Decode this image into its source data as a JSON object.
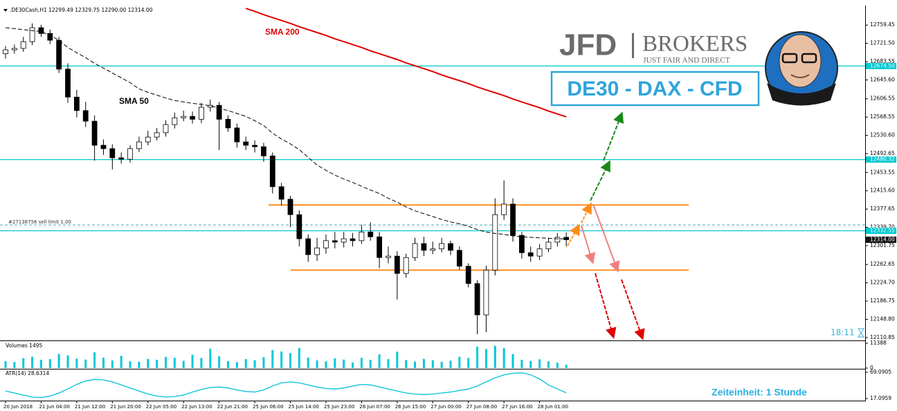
{
  "header": ".DE30Cash,H1  12299.49 12329.75 12290.00 12314.00",
  "logo": {
    "brand": "JFD",
    "name": "BROKERS",
    "tagline": "JUST FAIR AND DIRECT"
  },
  "instrument_badge": "DE30 - DAX - CFD",
  "countdown": "18:11",
  "timeframe_note": "Zeiteinheit: 1 Stunde",
  "chart_data": [
    {
      "type": "candlestick",
      "categories": [
        "20 Jun 2018",
        null,
        null,
        null,
        "21 Jun 04:00",
        null,
        null,
        null,
        "21 Jun 12:00",
        null,
        null,
        null,
        "21 Jun 20:00",
        null,
        null,
        null,
        "22 Jun 05:00",
        null,
        null,
        null,
        "22 Jun 13:00",
        null,
        null,
        null,
        "22 Jun 21:00",
        null,
        null,
        null,
        "25 Jun 06:00",
        null,
        null,
        null,
        "25 Jun 14:00",
        null,
        null,
        null,
        "25 Jun 23:00",
        null,
        null,
        null,
        "26 Jun 07:00",
        null,
        null,
        null,
        "26 Jun 15:00",
        null,
        null,
        null,
        "27 Jun 00:00",
        null,
        null,
        null,
        "27 Jun 08:00",
        null,
        null,
        null,
        "27 Jun 16:00",
        null,
        null,
        null,
        "28 Jun 01:00",
        null,
        null,
        null
      ],
      "open": [
        12700,
        12708,
        12711,
        12725,
        12754,
        12742,
        12728,
        12668,
        12610,
        12582,
        12560,
        12510,
        12503,
        12484,
        12481,
        12503,
        12517,
        12527,
        12536,
        12553,
        12567,
        12570,
        12564,
        12589,
        12593,
        12564,
        12546,
        12517,
        12510,
        12507,
        12488,
        12424,
        12398,
        12366,
        12316,
        12283,
        12297,
        12312,
        12309,
        12316,
        12312,
        12330,
        12320,
        12277,
        12280,
        12244,
        12277,
        12306,
        12292,
        12295,
        12306,
        12292,
        12259,
        12223,
        12158,
        12251,
        12366,
        12388,
        12323,
        12287,
        12280,
        12295,
        12309,
        12319
      ],
      "high": [
        12716,
        12719,
        12735,
        12763,
        12760,
        12750,
        12735,
        12680,
        12625,
        12600,
        12572,
        12522,
        12512,
        12495,
        12510,
        12528,
        12540,
        12546,
        12562,
        12578,
        12582,
        12580,
        12598,
        12605,
        12600,
        12572,
        12555,
        12528,
        12520,
        12515,
        12495,
        12432,
        12405,
        12375,
        12325,
        12318,
        12325,
        12330,
        12330,
        12328,
        12345,
        12350,
        12330,
        12300,
        12290,
        12285,
        12318,
        12320,
        12310,
        12318,
        12312,
        12300,
        12265,
        12230,
        12260,
        12400,
        12437,
        12400,
        12330,
        12300,
        12305,
        12318,
        12328,
        12329
      ],
      "low": [
        12690,
        12700,
        12704,
        12718,
        12735,
        12720,
        12660,
        12598,
        12568,
        12548,
        12478,
        12490,
        12460,
        12472,
        12474,
        12496,
        12510,
        12520,
        12528,
        12545,
        12560,
        12555,
        12556,
        12580,
        12500,
        12538,
        12505,
        12500,
        12495,
        12476,
        12410,
        12385,
        12340,
        12300,
        12268,
        12270,
        12285,
        12296,
        12298,
        12300,
        12305,
        12312,
        12255,
        12265,
        12190,
        12235,
        12270,
        12280,
        12284,
        12288,
        12282,
        12252,
        12215,
        12118,
        12122,
        12240,
        12355,
        12310,
        12275,
        12268,
        12272,
        12288,
        12300,
        12300
      ],
      "close": [
        12708,
        12711,
        12725,
        12754,
        12742,
        12728,
        12668,
        12610,
        12582,
        12560,
        12510,
        12503,
        12484,
        12481,
        12503,
        12517,
        12527,
        12536,
        12553,
        12567,
        12570,
        12564,
        12589,
        12593,
        12564,
        12546,
        12517,
        12510,
        12507,
        12488,
        12424,
        12398,
        12366,
        12316,
        12283,
        12297,
        12312,
        12309,
        12316,
        12312,
        12330,
        12320,
        12277,
        12280,
        12244,
        12277,
        12306,
        12292,
        12295,
        12306,
        12292,
        12259,
        12223,
        12158,
        12251,
        12366,
        12388,
        12323,
        12287,
        12280,
        12295,
        12309,
        12319,
        12314
      ],
      "up_color": "#ffffff",
      "down_color": "#000000",
      "series": [
        {
          "name": "SMA 50",
          "color": "#000000",
          "values": [
            12754,
            12752,
            12750,
            12748,
            12746,
            12738,
            12728,
            12713,
            12702,
            12692,
            12680,
            12670,
            12660,
            12650,
            12640,
            12627,
            12620,
            12614,
            12608,
            12603,
            12600,
            12597,
            12595,
            12592,
            12587,
            12582,
            12576,
            12570,
            12561,
            12551,
            12535,
            12523,
            12513,
            12501,
            12485,
            12469,
            12458,
            12448,
            12440,
            12433,
            12425,
            12417,
            12410,
            12400,
            12392,
            12382,
            12374,
            12368,
            12362,
            12356,
            12351,
            12347,
            12342,
            12335,
            12330,
            12327,
            12325,
            12322,
            12320,
            12319,
            12318,
            12317,
            12316,
            12316
          ]
        },
        {
          "name": "SMA 200",
          "color": "#e00000",
          "values": [
            null,
            null,
            null,
            null,
            null,
            null,
            null,
            null,
            null,
            null,
            null,
            null,
            null,
            null,
            null,
            null,
            null,
            null,
            null,
            null,
            null,
            null,
            null,
            null,
            null,
            null,
            null,
            12794,
            12788,
            12781,
            12775,
            12769,
            12763,
            12756,
            12750,
            12744,
            12738,
            12731,
            12725,
            12719,
            12713,
            12706,
            12700,
            12694,
            12688,
            12681,
            12675,
            12669,
            12663,
            12656,
            12650,
            12644,
            12638,
            12631,
            12625,
            12619,
            12613,
            12606,
            12600,
            12594,
            12588,
            12581,
            12575,
            12569
          ]
        }
      ],
      "levels": [
        {
          "value": 12674.5,
          "label": "12674.50",
          "color": "#00c8d0"
        },
        {
          "value": 12480.32,
          "label": "12480.32",
          "color": "#00c8d0"
        },
        {
          "value": 12332.55,
          "label": "12332.55",
          "color": "#00c8d0"
        }
      ],
      "order": {
        "value": 12344.7,
        "label": "#27138756 sell limit 1.00",
        "color": "#4aa6b8"
      },
      "zones": [
        12386,
        12251
      ],
      "zone_color": "#ff8c1a",
      "last_price": {
        "value": 12314,
        "label": "12314.00"
      },
      "ylim": [
        12105,
        12800
      ],
      "yticks": [
        12759.45,
        {
          "value": 12721.5,
          "label": "12721.50"
        },
        12683.55,
        {
          "value": 12645.6,
          "label": "12645.60"
        },
        12606.55,
        12568.55,
        {
          "value": 12530.6,
          "label": "12530.60"
        },
        12492.65,
        12453.55,
        {
          "value": 12415.6,
          "label": "12415.60"
        },
        12377.65,
        {
          "value": 12339.7,
          "label": "12339.70"
        },
        12301.75,
        12262.65,
        {
          "value": 12224.7,
          "label": "12224.70"
        },
        12186.75,
        {
          "value": 12148.8,
          "label": "12148.80"
        },
        12110.85
      ]
    },
    {
      "type": "bar",
      "title": "Volumes 1495",
      "color": "#00c8d8",
      "values": [
        3200,
        2800,
        4500,
        5200,
        3800,
        4100,
        6500,
        5800,
        4300,
        3900,
        7200,
        4800,
        3500,
        5600,
        3100,
        2900,
        4200,
        3800,
        5100,
        4700,
        3300,
        6100,
        4600,
        8900,
        5400,
        3200,
        2700,
        4100,
        3600,
        5000,
        8200,
        7600,
        6900,
        9200,
        4800,
        3500,
        3100,
        4400,
        3900,
        2600,
        4700,
        3800,
        6300,
        4100,
        7500,
        3700,
        3000,
        4200,
        3600,
        2900,
        3400,
        5200,
        4600,
        9800,
        8700,
        10200,
        9100,
        6400,
        3800,
        3300,
        4000,
        3100,
        2500,
        1495
      ],
      "ylim": [
        0,
        11388
      ],
      "yticks": [
        11388,
        0
      ]
    },
    {
      "type": "line",
      "title": "ATR(14) 28.6314",
      "color": "#00c0d8",
      "values": [
        32,
        28,
        24,
        20,
        19,
        22,
        28,
        36,
        45,
        52,
        55,
        54,
        50,
        44,
        38,
        32,
        26,
        22,
        20,
        21,
        24,
        30,
        35,
        39,
        40,
        38,
        34,
        31,
        30,
        34,
        42,
        48,
        50,
        48,
        44,
        40,
        37,
        36,
        38,
        42,
        45,
        44,
        40,
        36,
        32,
        28,
        26,
        25,
        26,
        28,
        30,
        33,
        36,
        42,
        50,
        58,
        64,
        67,
        68,
        64,
        56,
        44,
        36,
        28.6314
      ],
      "ylim": [
        17.0959,
        69.0905
      ],
      "yticks": [
        69.0905,
        17.0959
      ]
    }
  ]
}
